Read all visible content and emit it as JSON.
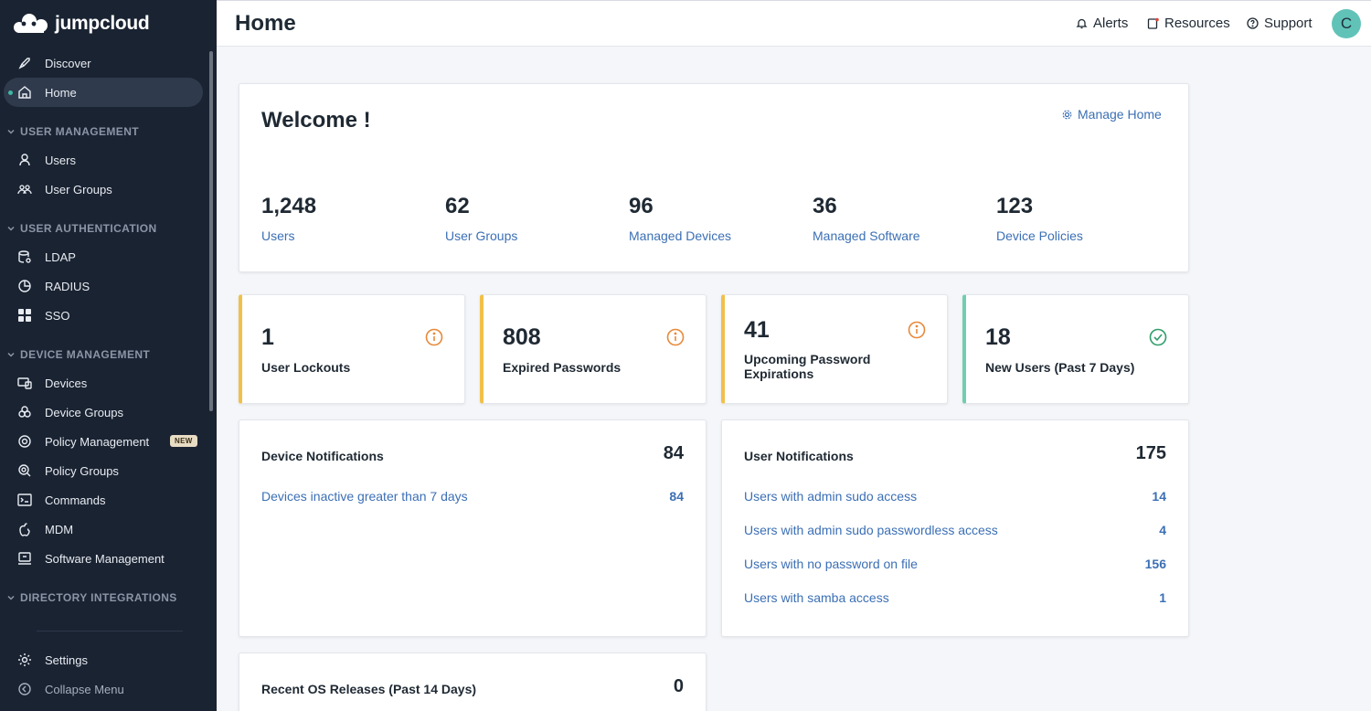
{
  "brand": {
    "name": "jumpcloud"
  },
  "sidebar": {
    "top": [
      {
        "label": "Discover",
        "icon": "rocket-icon"
      },
      {
        "label": "Home",
        "icon": "home-icon",
        "active": true
      }
    ],
    "sections": [
      {
        "title": "USER MANAGEMENT",
        "items": [
          {
            "label": "Users"
          },
          {
            "label": "User Groups"
          }
        ]
      },
      {
        "title": "USER AUTHENTICATION",
        "items": [
          {
            "label": "LDAP"
          },
          {
            "label": "RADIUS"
          },
          {
            "label": "SSO"
          }
        ]
      },
      {
        "title": "DEVICE MANAGEMENT",
        "items": [
          {
            "label": "Devices"
          },
          {
            "label": "Device Groups"
          },
          {
            "label": "Policy Management",
            "badge": "NEW"
          },
          {
            "label": "Policy Groups"
          },
          {
            "label": "Commands"
          },
          {
            "label": "MDM"
          },
          {
            "label": "Software Management"
          }
        ]
      },
      {
        "title": "DIRECTORY INTEGRATIONS",
        "items": []
      }
    ],
    "bottom": [
      {
        "label": "Settings"
      },
      {
        "label": "Collapse Menu"
      }
    ]
  },
  "header": {
    "title": "Home",
    "alerts": "Alerts",
    "resources": "Resources",
    "support": "Support",
    "avatar_initial": "C"
  },
  "welcome": {
    "title": "Welcome !",
    "manage": "Manage Home",
    "stats": [
      {
        "value": "1,248",
        "label": "Users"
      },
      {
        "value": "62",
        "label": "User Groups"
      },
      {
        "value": "96",
        "label": "Managed Devices"
      },
      {
        "value": "36",
        "label": "Managed Software"
      },
      {
        "value": "123",
        "label": "Device Policies"
      }
    ]
  },
  "metrics": [
    {
      "value": "1",
      "label": "User Lockouts",
      "status": "warning"
    },
    {
      "value": "808",
      "label": "Expired Passwords",
      "status": "warning"
    },
    {
      "value": "41",
      "label": "Upcoming Password Expirations",
      "status": "warning"
    },
    {
      "value": "18",
      "label": "New Users (Past 7 Days)",
      "status": "ok"
    }
  ],
  "device_notifications": {
    "title": "Device Notifications",
    "total": "84",
    "rows": [
      {
        "label": "Devices inactive greater than 7 days",
        "value": "84"
      }
    ]
  },
  "user_notifications": {
    "title": "User Notifications",
    "total": "175",
    "rows": [
      {
        "label": "Users with admin sudo access",
        "value": "14"
      },
      {
        "label": "Users with admin sudo passwordless access",
        "value": "4"
      },
      {
        "label": "Users with no password on file",
        "value": "156"
      },
      {
        "label": "Users with samba access",
        "value": "1"
      }
    ]
  },
  "os_releases": {
    "title": "Recent OS Releases (Past 14 Days)",
    "total": "0"
  },
  "colors": {
    "sidebar": "#1a2332",
    "link": "#3b6fb5",
    "warning": "#e8893a",
    "ok": "#2f9e6a",
    "accent": "#61c3b8"
  }
}
